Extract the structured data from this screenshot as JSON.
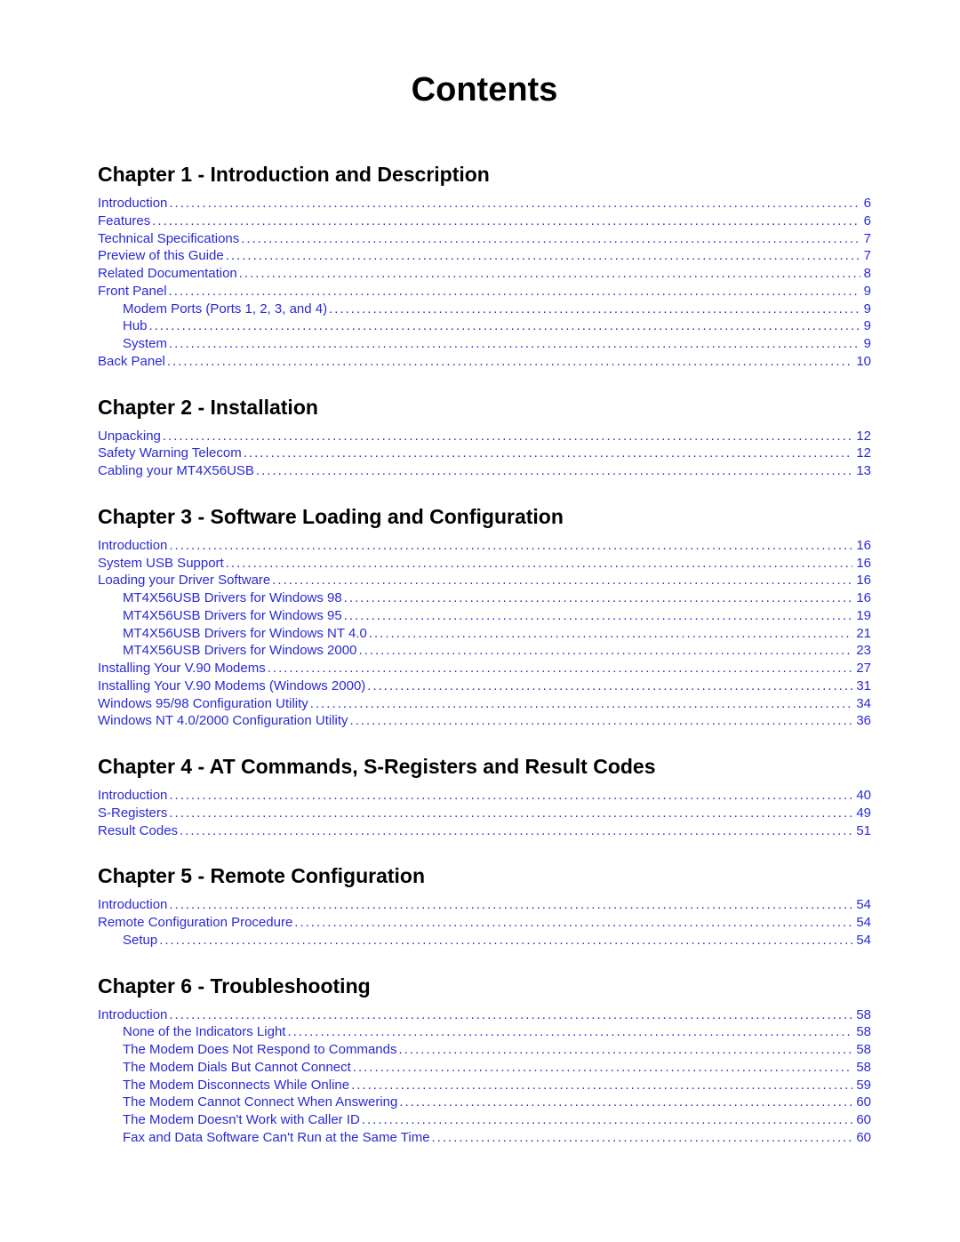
{
  "title": "Contents",
  "link_color": "#2929d6",
  "heading_color": "#000000",
  "chapters": [
    {
      "heading": "Chapter 1 - Introduction and Description",
      "entries": [
        {
          "label": "Introduction",
          "page": "6",
          "level": 1
        },
        {
          "label": "Features",
          "page": "6",
          "level": 1
        },
        {
          "label": "Technical Specifications",
          "page": "7",
          "level": 1
        },
        {
          "label": "Preview of this Guide",
          "page": "7",
          "level": 1
        },
        {
          "label": "Related Documentation",
          "page": "8",
          "level": 1
        },
        {
          "label": "Front Panel",
          "page": "9",
          "level": 1
        },
        {
          "label": "Modem Ports (Ports 1, 2, 3, and 4)",
          "page": "9",
          "level": 2
        },
        {
          "label": "Hub",
          "page": "9",
          "level": 2
        },
        {
          "label": "System",
          "page": "9",
          "level": 2
        },
        {
          "label": "Back Panel",
          "page": "10",
          "level": 1
        }
      ]
    },
    {
      "heading": "Chapter 2 - Installation",
      "entries": [
        {
          "label": "Unpacking",
          "page": "12",
          "level": 1
        },
        {
          "label": "Safety Warning Telecom",
          "page": "12",
          "level": 1
        },
        {
          "label": "Cabling your MT4X56USB",
          "page": "13",
          "level": 1
        }
      ]
    },
    {
      "heading": "Chapter 3 - Software Loading and Configuration",
      "entries": [
        {
          "label": "Introduction",
          "page": "16",
          "level": 1
        },
        {
          "label": "System USB Support",
          "page": "16",
          "level": 1
        },
        {
          "label": "Loading your Driver Software",
          "page": "16",
          "level": 1
        },
        {
          "label": "MT4X56USB Drivers for Windows 98",
          "page": "16",
          "level": 2
        },
        {
          "label": "MT4X56USB Drivers for Windows 95",
          "page": "19",
          "level": 2
        },
        {
          "label": "MT4X56USB Drivers for Windows NT 4.0",
          "page": "21",
          "level": 2
        },
        {
          "label": "MT4X56USB Drivers for Windows 2000",
          "page": "23",
          "level": 2
        },
        {
          "label": "Installing Your V.90 Modems",
          "page": "27",
          "level": 1
        },
        {
          "label": "Installing Your V.90 Modems (Windows 2000)",
          "page": "31",
          "level": 1
        },
        {
          "label": "Windows 95/98 Configuration Utility",
          "page": "34",
          "level": 1
        },
        {
          "label": "Windows NT 4.0/2000 Configuration Utility",
          "page": "36",
          "level": 1
        }
      ]
    },
    {
      "heading": "Chapter 4 - AT Commands, S-Registers and Result Codes",
      "entries": [
        {
          "label": "Introduction",
          "page": "40",
          "level": 1
        },
        {
          "label": "S-Registers",
          "page": "49",
          "level": 1
        },
        {
          "label": "Result Codes",
          "page": "51",
          "level": 1
        }
      ]
    },
    {
      "heading": "Chapter 5 - Remote Configuration",
      "entries": [
        {
          "label": "Introduction",
          "page": "54",
          "level": 1
        },
        {
          "label": "Remote Configuration Procedure",
          "page": "54",
          "level": 1
        },
        {
          "label": "Setup",
          "page": "54",
          "level": 2
        }
      ]
    },
    {
      "heading": "Chapter 6 - Troubleshooting",
      "entries": [
        {
          "label": "Introduction",
          "page": "58",
          "level": 1
        },
        {
          "label": "None of the Indicators Light",
          "page": "58",
          "level": 2
        },
        {
          "label": "The Modem Does Not Respond to Commands",
          "page": "58",
          "level": 2
        },
        {
          "label": "The Modem Dials But Cannot Connect",
          "page": "58",
          "level": 2
        },
        {
          "label": "The Modem Disconnects While Online",
          "page": "59",
          "level": 2
        },
        {
          "label": "The Modem Cannot Connect When Answering",
          "page": "60",
          "level": 2
        },
        {
          "label": "The Modem Doesn't Work with Caller ID",
          "page": "60",
          "level": 2
        },
        {
          "label": "Fax and Data Software Can't Run at the Same Time",
          "page": "60",
          "level": 2
        }
      ]
    }
  ]
}
